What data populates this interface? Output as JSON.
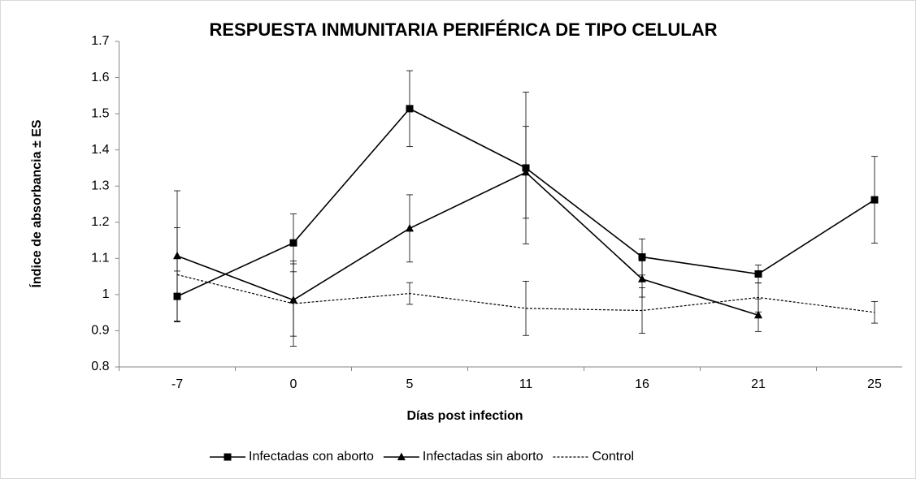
{
  "chart_data": {
    "type": "line",
    "title": "RESPUESTA INMUNITARIA PERIFÉRICA DE TIPO CELULAR",
    "x_label": "Días post infection",
    "y_label": "Índice de absorbancia ± ES",
    "categories": [
      "-7",
      "0",
      "5",
      "11",
      "16",
      "21",
      "25"
    ],
    "series": [
      {
        "name": "Infectadas con aborto",
        "color": "#000000",
        "marker": "square",
        "dash": false,
        "values": [
          0.995,
          1.143,
          1.514,
          1.35,
          1.104,
          1.057,
          1.262
        ],
        "errors": [
          0.07,
          0.08,
          0.105,
          0.21,
          0.05,
          0.025,
          0.12
        ]
      },
      {
        "name": "Infectadas sin aborto",
        "color": "#000000",
        "marker": "triangle",
        "dash": false,
        "values": [
          1.107,
          0.985,
          1.183,
          1.338,
          1.043,
          0.943,
          null
        ],
        "errors": [
          0.18,
          0.1,
          0.093,
          0.127,
          0.05,
          0.045,
          null
        ]
      },
      {
        "name": "Control",
        "color": "#000000",
        "marker": "none",
        "dash": true,
        "values": [
          1.055,
          0.975,
          1.003,
          0.962,
          0.956,
          0.992,
          0.951
        ],
        "errors": [
          0.13,
          0.118,
          0.03,
          0.075,
          0.063,
          0.04,
          0.03
        ]
      }
    ],
    "ylim": [
      0.8,
      1.7
    ],
    "yticks": [
      0.8,
      0.9,
      1,
      1.1,
      1.2,
      1.3,
      1.4,
      1.5,
      1.6,
      1.7
    ],
    "legend": "bottom",
    "grid": false
  }
}
